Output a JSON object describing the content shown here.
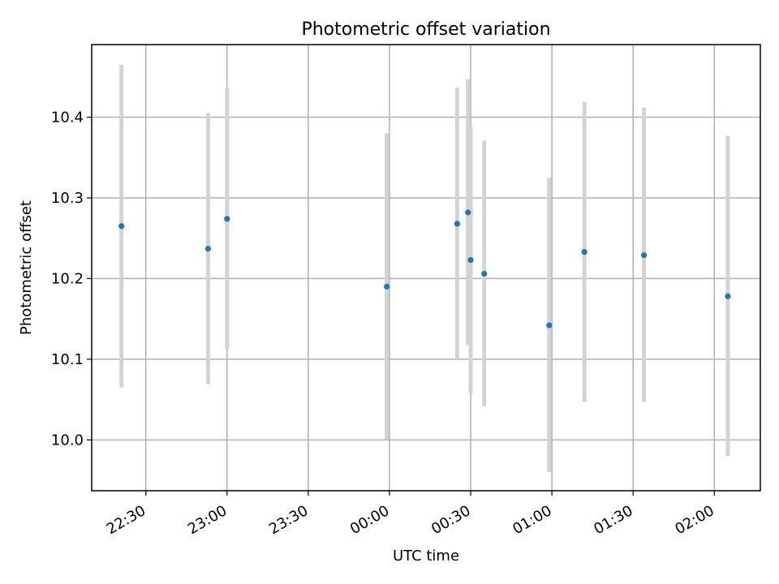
{
  "chart_data": {
    "type": "scatter",
    "title": "Photometric offset variation",
    "xlabel": "UTC time",
    "ylabel": "Photometric offset",
    "x_axis_kind": "time",
    "x_ticks": [
      "22:30",
      "23:00",
      "23:30",
      "00:00",
      "00:30",
      "01:00",
      "01:30",
      "02:00"
    ],
    "y_ticks": [
      "10.0",
      "10.1",
      "10.2",
      "10.3",
      "10.4"
    ],
    "x_range": [
      "22:10",
      "02:17"
    ],
    "ylim": [
      9.937,
      10.49
    ],
    "grid": true,
    "colors": {
      "point": "#1f77b4",
      "errorbar": "#d3d3d3",
      "grid": "#b0b0b0",
      "axis": "#000000"
    },
    "points": [
      {
        "time": "22:21",
        "value": 10.265,
        "low": 10.065,
        "high": 10.465
      },
      {
        "time": "22:53",
        "value": 10.237,
        "low": 10.069,
        "high": 10.405
      },
      {
        "time": "23:00",
        "value": 10.274,
        "low": 10.112,
        "high": 10.437
      },
      {
        "time": "23:59",
        "value": 10.19,
        "low": 10.001,
        "high": 10.38
      },
      {
        "time": "00:25",
        "value": 10.268,
        "low": 10.1,
        "high": 10.437
      },
      {
        "time": "00:29",
        "value": 10.282,
        "low": 10.118,
        "high": 10.447
      },
      {
        "time": "00:30",
        "value": 10.223,
        "low": 10.057,
        "high": 10.389
      },
      {
        "time": "00:35",
        "value": 10.206,
        "low": 10.042,
        "high": 10.371
      },
      {
        "time": "00:59",
        "value": 10.142,
        "low": 9.96,
        "high": 10.325
      },
      {
        "time": "01:12",
        "value": 10.233,
        "low": 10.047,
        "high": 10.419
      },
      {
        "time": "01:34",
        "value": 10.229,
        "low": 10.047,
        "high": 10.412
      },
      {
        "time": "02:05",
        "value": 10.178,
        "low": 9.98,
        "high": 10.377
      }
    ]
  }
}
